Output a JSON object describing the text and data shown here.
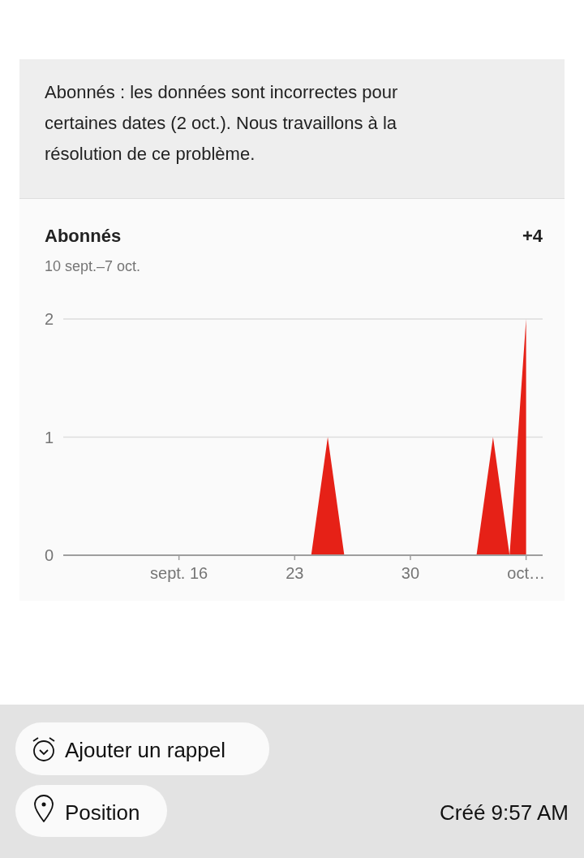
{
  "chart_data": {
    "type": "area",
    "title": "Abonnés",
    "subtitle": "10 sept.–7 oct.",
    "annotations": [
      "Abonnés : les données sont incorrectes pour certaines dates (2 oct.). Nous travaillons à la résolution de ce problème.",
      "+4",
      "Ajouter un rappel",
      "Position",
      "Créé 9:57 AM"
    ],
    "x": [
      "--09-10",
      "--09-11",
      "--09-12",
      "--09-13",
      "--09-14",
      "--09-15",
      "--09-16",
      "--09-17",
      "--09-18",
      "--09-19",
      "--09-20",
      "--09-21",
      "--09-22",
      "--09-23",
      "--09-24",
      "--09-25",
      "--09-26",
      "--09-27",
      "--09-28",
      "--09-29",
      "--09-30",
      "--10-01",
      "--10-02",
      "--10-03",
      "--10-04",
      "--10-05",
      "--10-06",
      "--10-07"
    ],
    "series": [
      {
        "color": "#e62117",
        "values": [
          0,
          0,
          0,
          0,
          0,
          0,
          0,
          0,
          0,
          0,
          0,
          0,
          0,
          0,
          0,
          1,
          0,
          0,
          0,
          0,
          0,
          0,
          0,
          0,
          0,
          1,
          0,
          2
        ]
      }
    ],
    "xlim": [
      "--09-09",
      "--10-08"
    ],
    "xticks": [
      {
        "value": "--09-16",
        "label": "sept. 16"
      },
      {
        "value": "--09-23",
        "label": "23"
      },
      {
        "value": "--09-30",
        "label": "30"
      },
      {
        "value": "--10-07",
        "label": "oct…"
      }
    ],
    "ylim": [
      0,
      2
    ],
    "yticks": [
      0,
      1,
      2
    ],
    "grid": "y"
  }
}
